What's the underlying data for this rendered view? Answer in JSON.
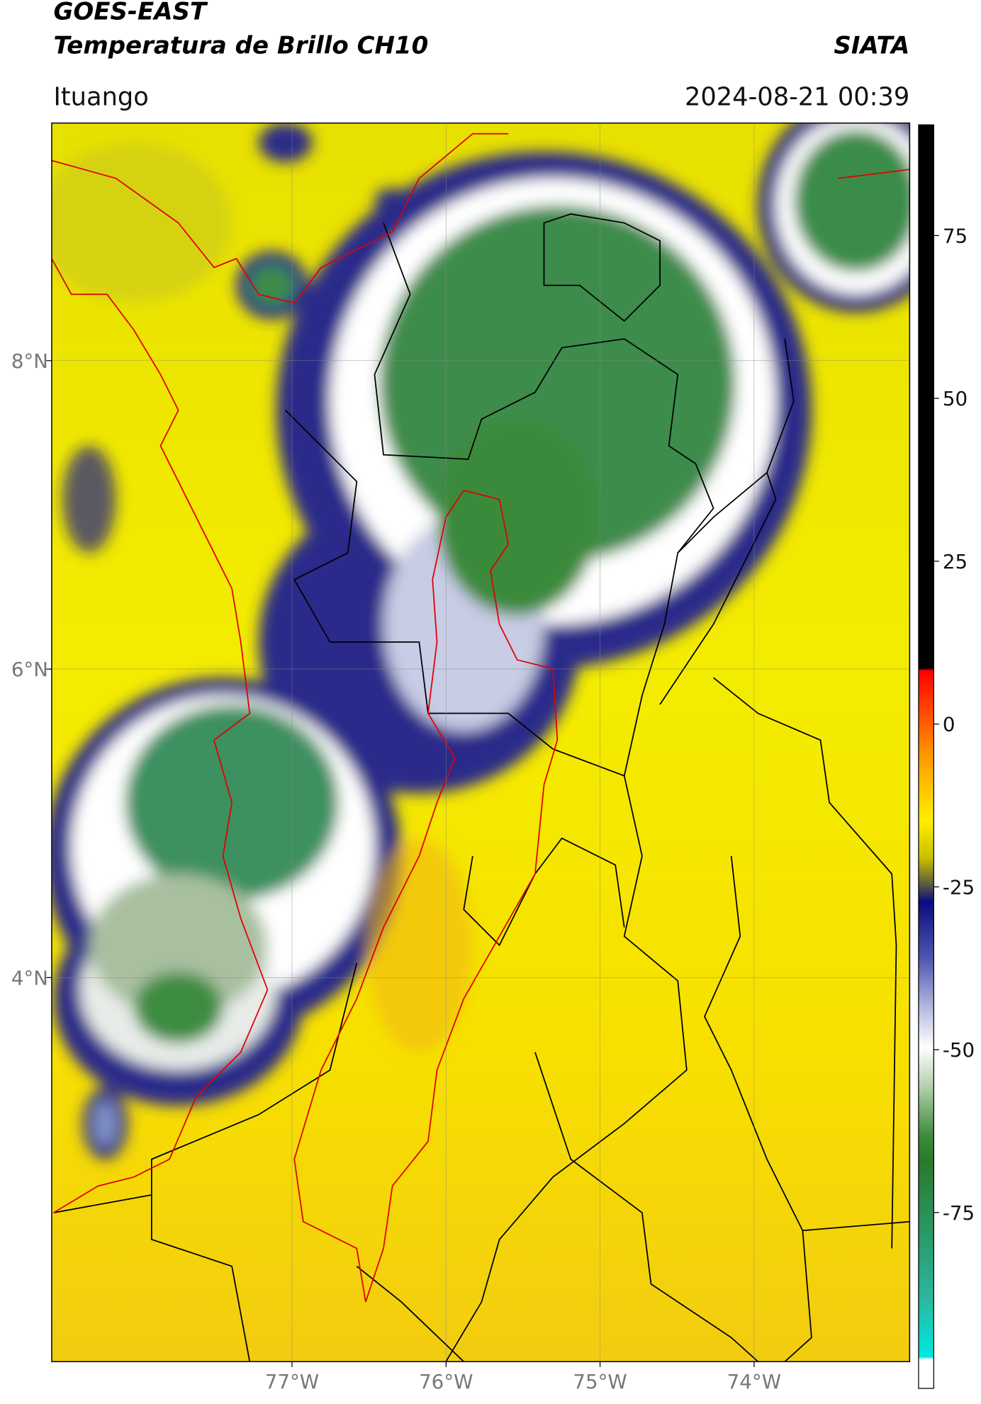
{
  "header": {
    "title": "GOES-EAST",
    "subtitle": "Temperatura de Brillo CH10",
    "brand": "SIATA",
    "location": "Ituango",
    "datetime": "2024-08-21 00:39"
  },
  "map": {
    "xlim": [
      -78.56,
      -72.99
    ],
    "ylim": [
      1.51,
      9.54
    ],
    "xticks": [
      {
        "value": -77,
        "label": "77°W"
      },
      {
        "value": -76,
        "label": "76°W"
      },
      {
        "value": -75,
        "label": "75°W"
      },
      {
        "value": -74,
        "label": "74°W"
      }
    ],
    "yticks": [
      {
        "value": 4,
        "label": "4°N"
      },
      {
        "value": 6,
        "label": "6°N"
      },
      {
        "value": 8,
        "label": "8°N"
      }
    ],
    "grid": true
  },
  "colorbar": {
    "clim": [
      -102,
      92
    ],
    "ticks": [
      -75,
      -50,
      -25,
      0,
      25,
      50,
      75
    ]
  }
}
